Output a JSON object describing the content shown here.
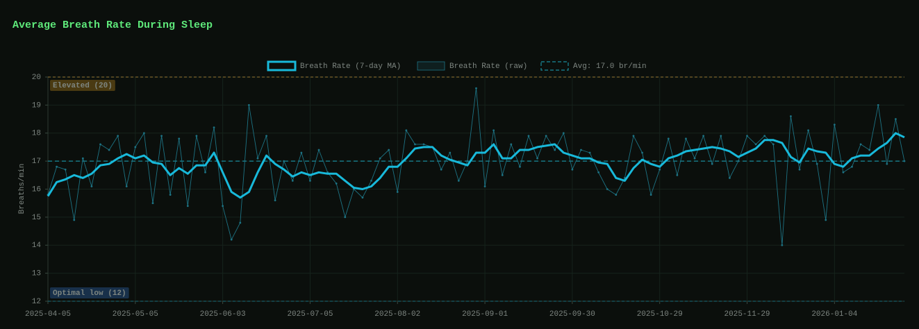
{
  "chart_data": {
    "type": "line",
    "title": "Average Breath Rate During Sleep",
    "y_label": "Breaths/min",
    "categories": [
      "2025-04-05",
      null,
      null,
      null,
      null,
      null,
      null,
      null,
      null,
      null,
      "2025-05-05",
      null,
      null,
      null,
      null,
      null,
      null,
      null,
      null,
      null,
      "2025-06-03",
      null,
      null,
      null,
      null,
      null,
      null,
      null,
      null,
      null,
      "2025-07-05",
      null,
      null,
      null,
      null,
      null,
      null,
      null,
      null,
      null,
      "2025-08-02",
      null,
      null,
      null,
      null,
      null,
      null,
      null,
      null,
      null,
      "2025-09-01",
      null,
      null,
      null,
      null,
      null,
      null,
      null,
      null,
      null,
      "2025-09-30",
      null,
      null,
      null,
      null,
      null,
      null,
      null,
      null,
      null,
      "2025-10-29",
      null,
      null,
      null,
      null,
      null,
      null,
      null,
      null,
      null,
      "2025-11-29",
      null,
      null,
      null,
      null,
      null,
      null,
      null,
      null,
      null,
      "2026-01-04",
      null,
      null,
      null,
      null,
      null,
      null,
      null,
      null
    ],
    "series": [
      {
        "name": "Breath Rate (7-day MA)",
        "color": "#18b9da",
        "values": [
          15.75,
          16.25,
          16.35,
          16.5,
          16.4,
          16.55,
          16.85,
          16.9,
          17.1,
          17.25,
          17.1,
          17.2,
          16.95,
          16.9,
          16.5,
          16.75,
          16.55,
          16.85,
          16.85,
          17.3,
          16.6,
          15.9,
          15.7,
          15.9,
          16.6,
          17.2,
          16.9,
          16.7,
          16.45,
          16.6,
          16.5,
          16.6,
          16.55,
          16.55,
          16.3,
          16.05,
          16.0,
          16.1,
          16.4,
          16.8,
          16.8,
          17.1,
          17.45,
          17.5,
          17.5,
          17.2,
          17.05,
          16.95,
          16.85,
          17.3,
          17.3,
          17.6,
          17.1,
          17.1,
          17.4,
          17.4,
          17.5,
          17.55,
          17.6,
          17.3,
          17.2,
          17.1,
          17.1,
          16.95,
          16.9,
          16.4,
          16.3,
          16.75,
          17.05,
          16.9,
          16.8,
          17.1,
          17.2,
          17.35,
          17.4,
          17.45,
          17.5,
          17.45,
          17.35,
          17.15,
          17.3,
          17.45,
          17.75,
          17.75,
          17.65,
          17.15,
          16.95,
          17.45,
          17.35,
          17.3,
          16.9,
          16.8,
          17.1,
          17.2,
          17.2,
          17.45,
          17.65,
          18.0,
          17.85
        ]
      },
      {
        "name": "Breath Rate (raw)",
        "color": "#1d7384",
        "values": [
          15.8,
          16.8,
          16.7,
          14.9,
          17.1,
          16.1,
          17.6,
          17.4,
          17.9,
          16.1,
          17.5,
          18.0,
          15.5,
          17.9,
          15.8,
          17.8,
          15.4,
          17.9,
          16.6,
          18.2,
          15.4,
          14.2,
          14.8,
          19.0,
          17.1,
          17.9,
          15.6,
          17.0,
          16.3,
          17.3,
          16.3,
          17.4,
          16.6,
          16.2,
          15.0,
          16.0,
          15.7,
          16.3,
          17.1,
          17.4,
          15.9,
          18.1,
          17.6,
          17.6,
          17.5,
          16.7,
          17.3,
          16.3,
          17.0,
          19.6,
          16.1,
          18.1,
          16.5,
          17.6,
          16.8,
          17.9,
          17.1,
          17.9,
          17.4,
          18.0,
          16.7,
          17.4,
          17.3,
          16.6,
          16.0,
          15.8,
          16.4,
          17.9,
          17.3,
          15.8,
          16.7,
          17.8,
          16.5,
          17.8,
          17.1,
          17.9,
          16.9,
          17.9,
          16.4,
          17.0,
          17.9,
          17.6,
          17.9,
          17.6,
          14.0,
          18.6,
          16.7,
          18.1,
          16.9,
          14.9,
          18.3,
          16.6,
          16.8,
          17.6,
          17.4,
          19.0,
          16.9,
          18.5,
          17.0
        ]
      }
    ],
    "average": {
      "value": 17.0,
      "label": "Avg: 17.0 br/min",
      "color": "#1a8b9c"
    },
    "thresholds": [
      {
        "value": 20,
        "label": "Elevated (20)",
        "color": "#9a7a35",
        "bg": "#4a3a12"
      },
      {
        "value": 12,
        "label": "Optimal low (12)",
        "color": "#1a6f7c",
        "bg": "#18304a"
      }
    ],
    "ylim": [
      12,
      20
    ],
    "yticks": [
      12,
      13,
      14,
      15,
      16,
      17,
      18,
      19,
      20
    ],
    "grid": true
  }
}
